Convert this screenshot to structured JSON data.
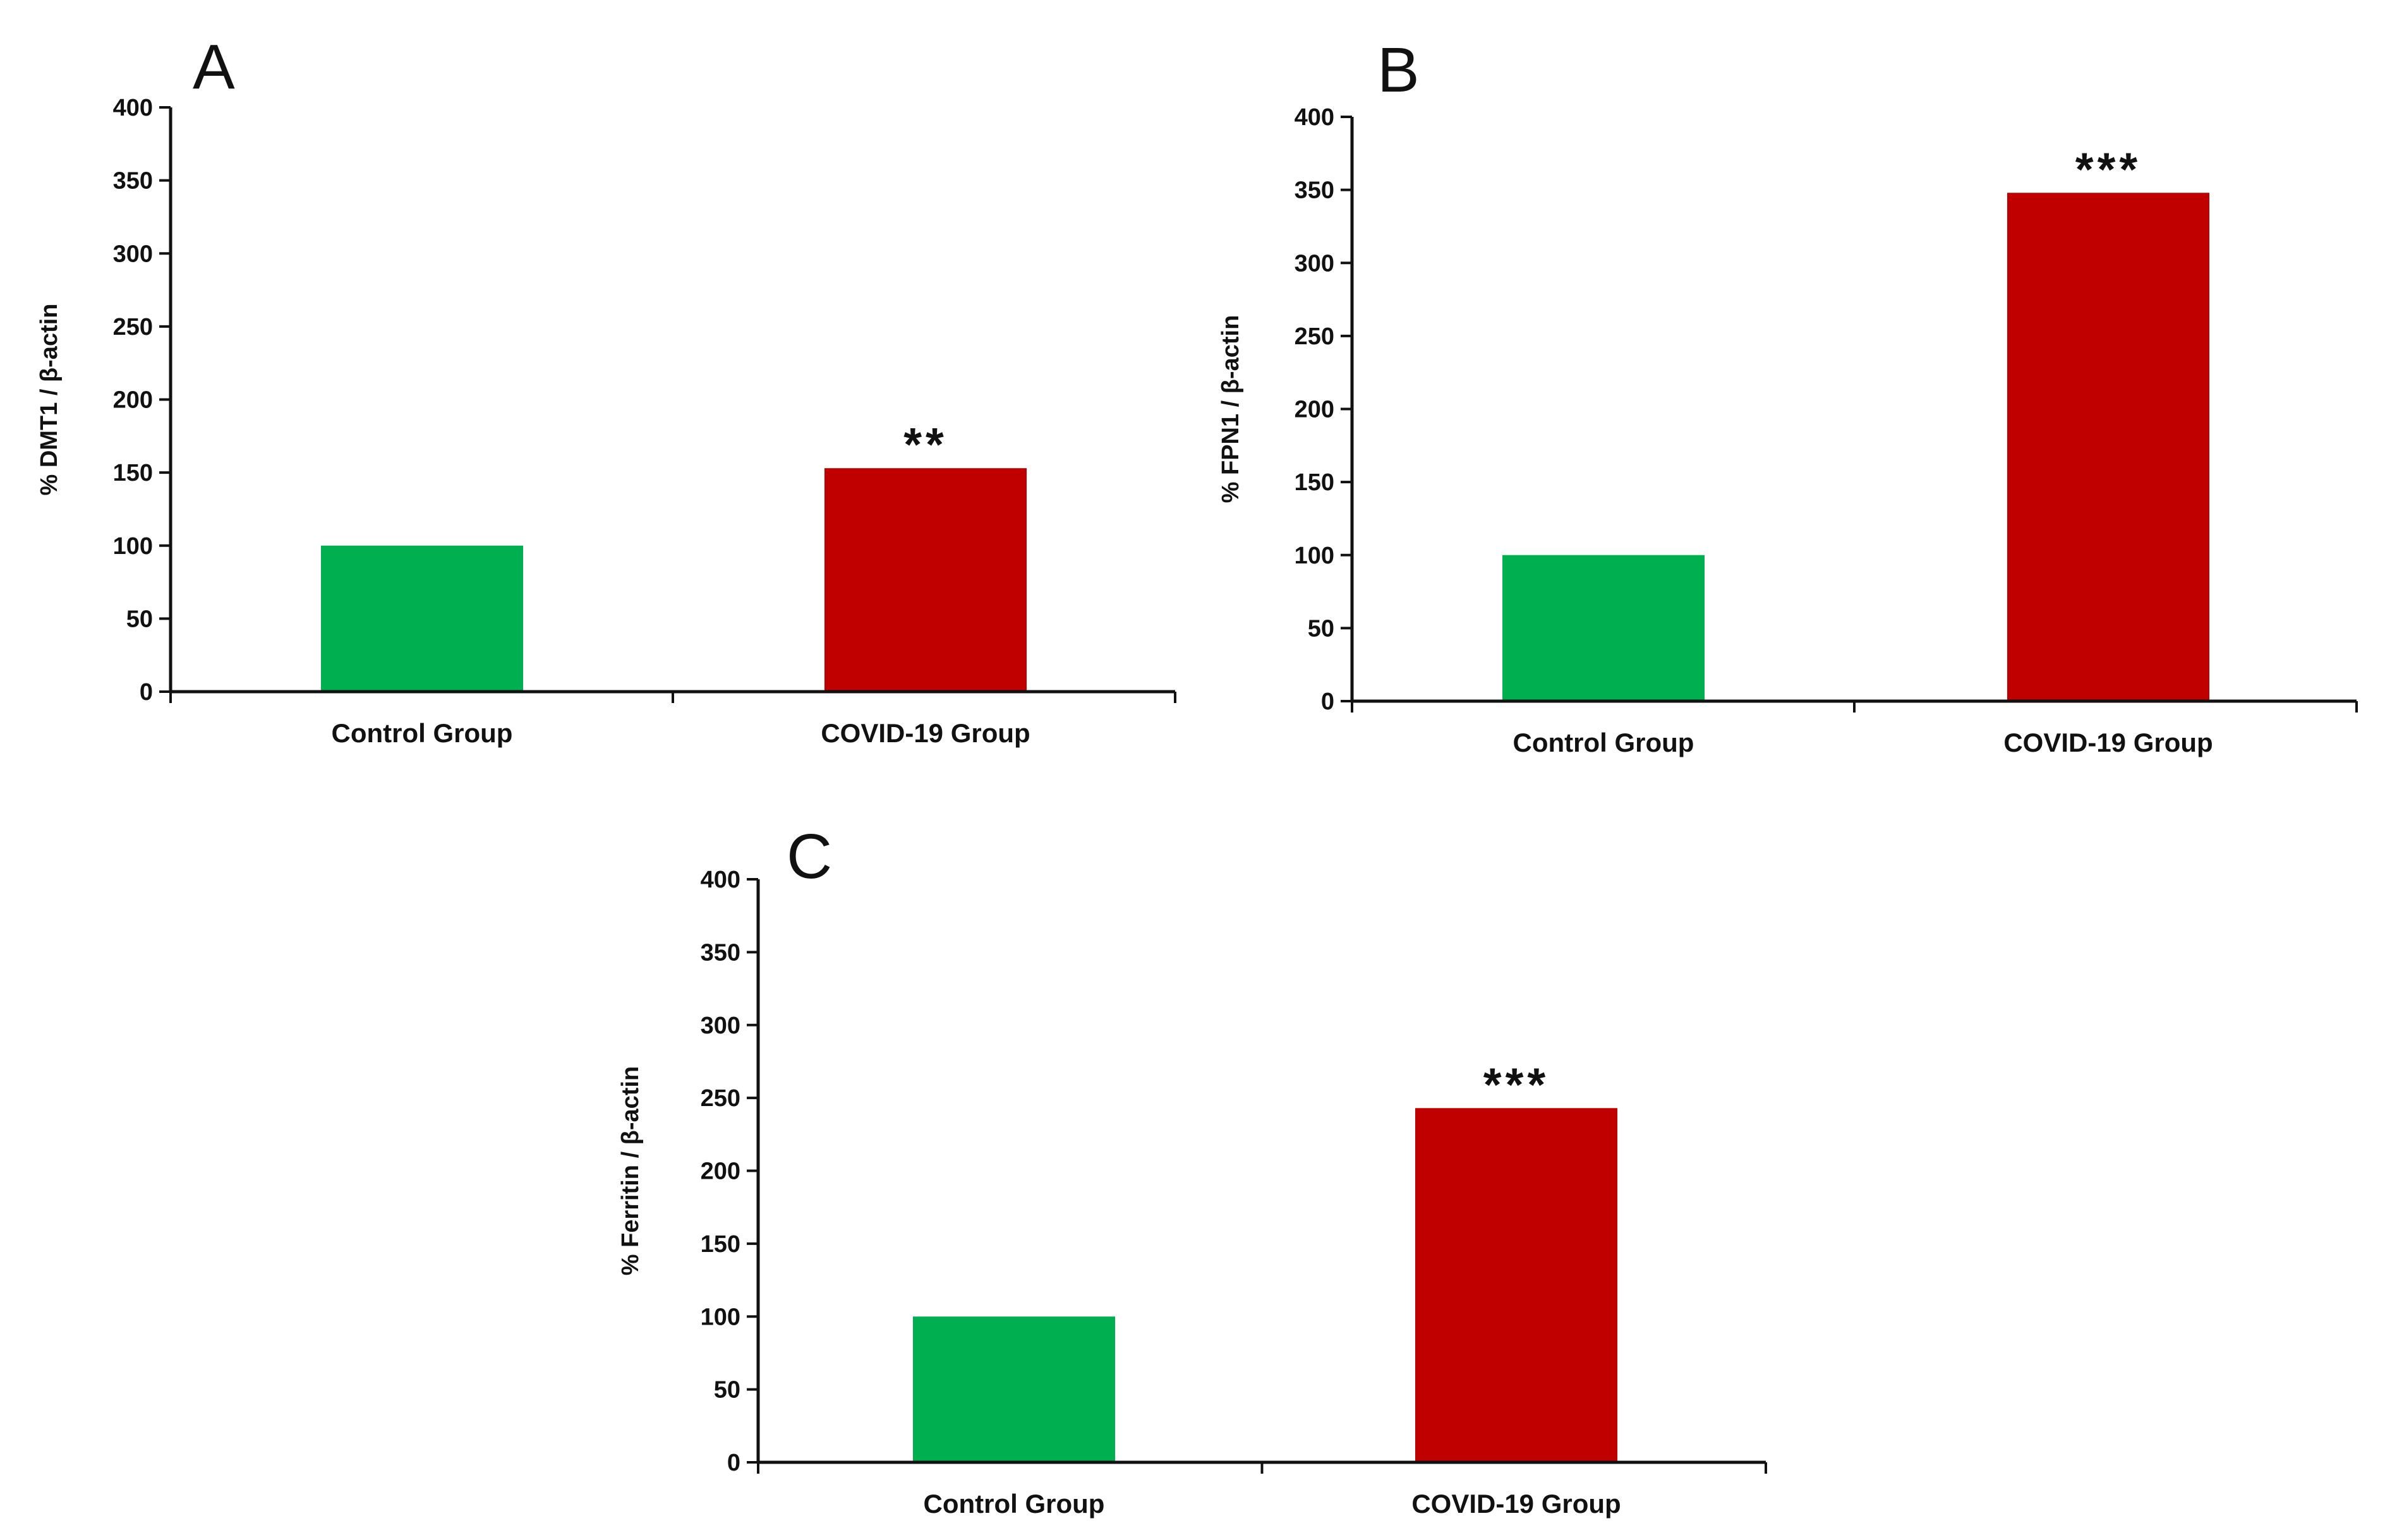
{
  "colors": {
    "control": "#00b050",
    "covid": "#c00000",
    "axis": "#111111"
  },
  "chart_data": [
    {
      "panel": "A",
      "type": "bar",
      "categories": [
        "Control Group",
        "COVID-19 Group"
      ],
      "values": [
        100,
        153
      ],
      "significance": [
        "",
        "**"
      ],
      "ylabel": "% DMT1 / β-actin",
      "xlabel": "",
      "ylim": [
        0,
        400
      ],
      "yticks": [
        "0",
        "50",
        "100",
        "150",
        "200",
        "250",
        "300",
        "350",
        "400"
      ],
      "grid": false,
      "legend": "none"
    },
    {
      "panel": "B",
      "type": "bar",
      "categories": [
        "Control Group",
        "COVID-19 Group"
      ],
      "values": [
        100,
        348
      ],
      "significance": [
        "",
        "***"
      ],
      "ylabel": "% FPN1 / β-actin",
      "xlabel": "",
      "ylim": [
        0,
        400
      ],
      "yticks": [
        "0",
        "50",
        "100",
        "150",
        "200",
        "250",
        "300",
        "350",
        "400"
      ],
      "grid": false,
      "legend": "none"
    },
    {
      "panel": "C",
      "type": "bar",
      "categories": [
        "Control Group",
        "COVID-19 Group"
      ],
      "values": [
        100,
        243
      ],
      "significance": [
        "",
        "***"
      ],
      "ylabel": "% Ferritin / β-actin",
      "xlabel": "",
      "ylim": [
        0,
        400
      ],
      "yticks": [
        "0",
        "50",
        "100",
        "150",
        "200",
        "250",
        "300",
        "350",
        "400"
      ],
      "grid": false,
      "legend": "none"
    }
  ]
}
